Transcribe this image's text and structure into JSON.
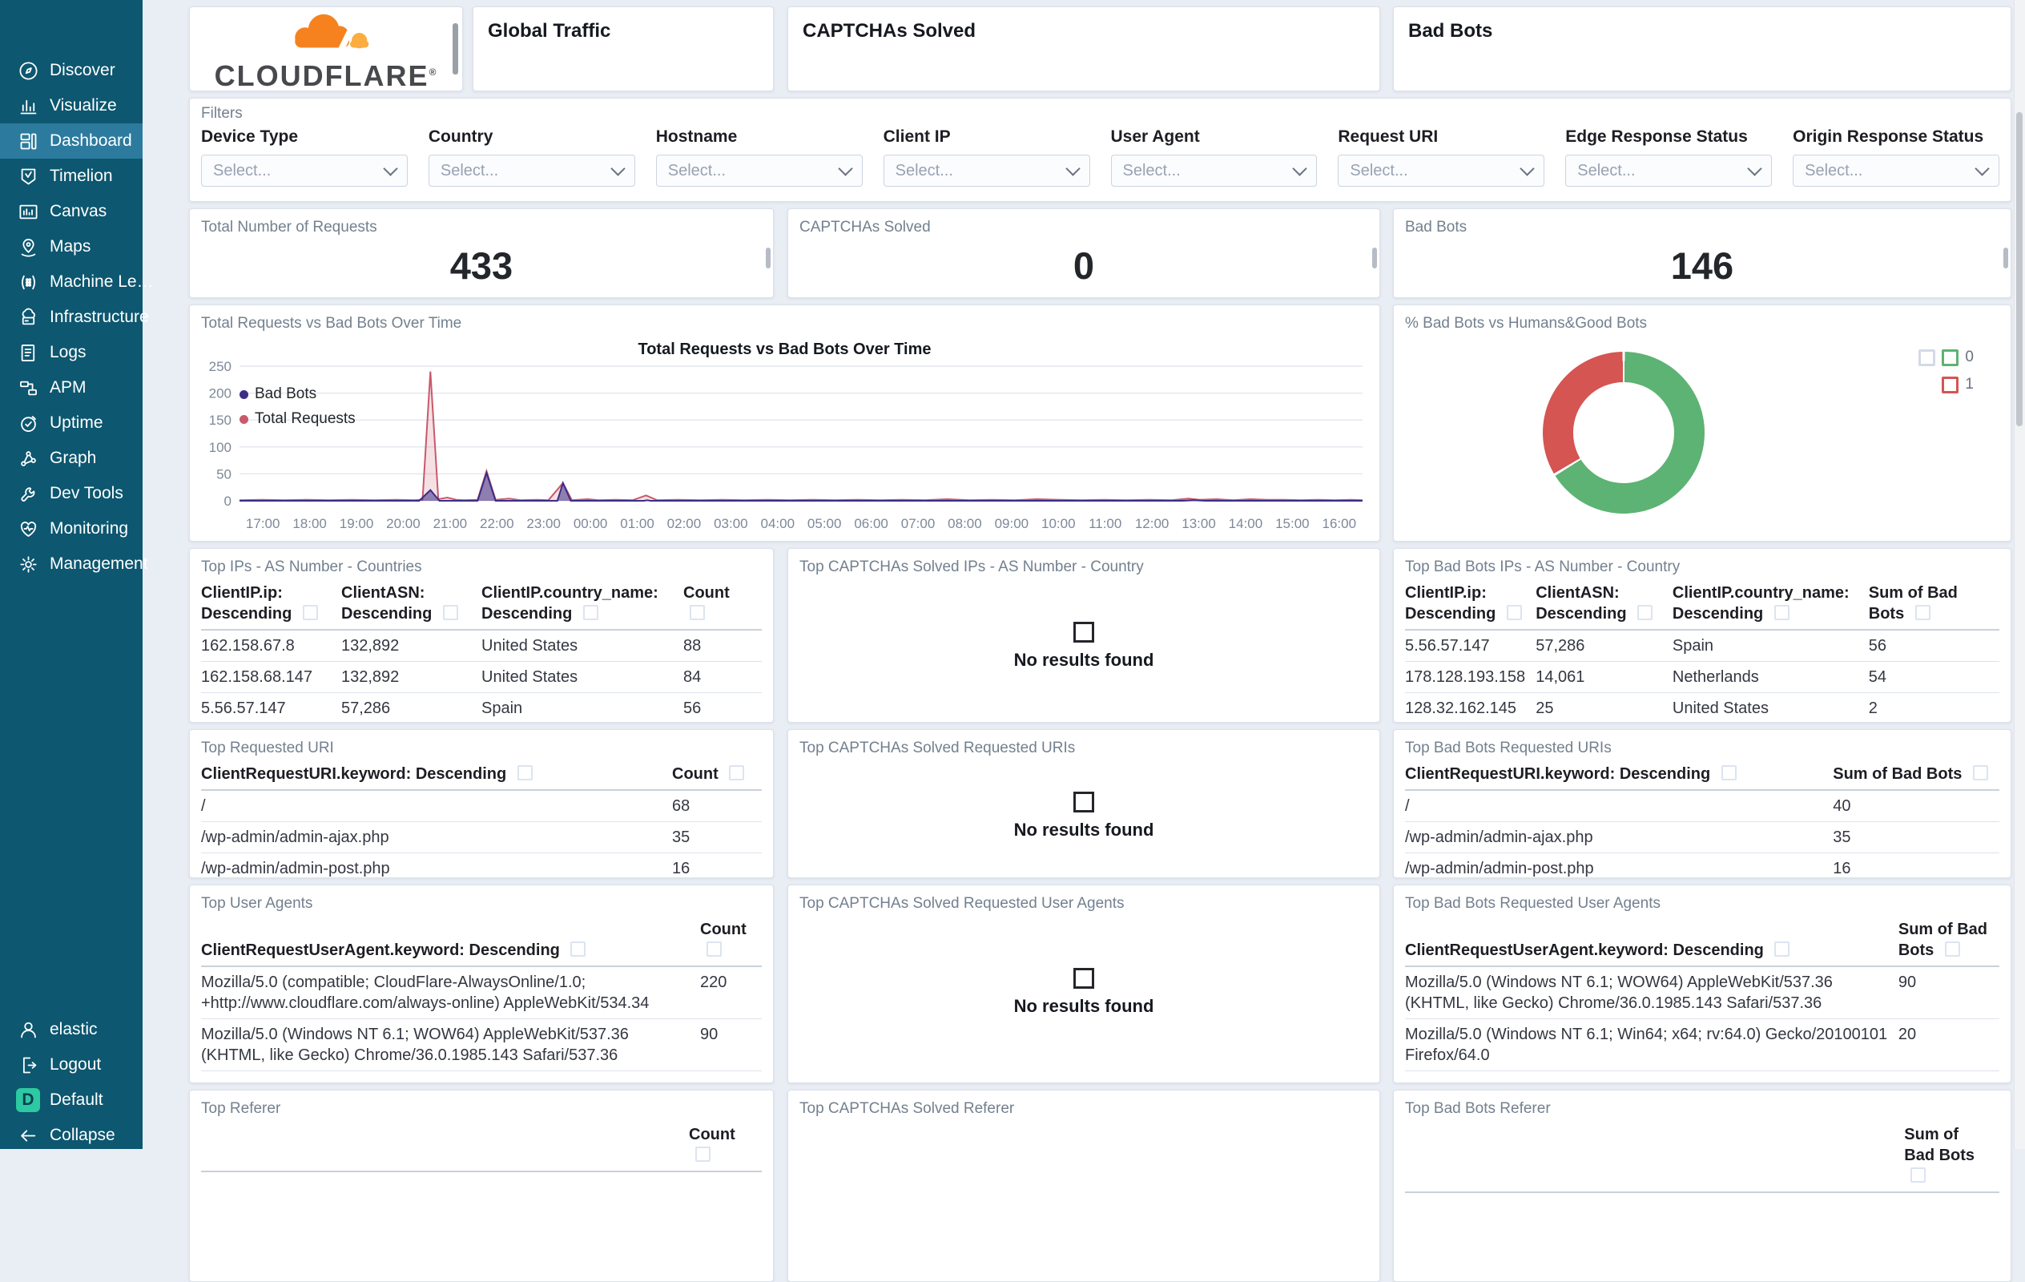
{
  "sidebar": {
    "items": [
      {
        "label": "Discover",
        "icon": "discover-icon",
        "active": false
      },
      {
        "label": "Visualize",
        "icon": "visualize-icon",
        "active": false
      },
      {
        "label": "Dashboard",
        "icon": "dashboard-icon",
        "active": true
      },
      {
        "label": "Timelion",
        "icon": "timelion-icon",
        "active": false
      },
      {
        "label": "Canvas",
        "icon": "canvas-icon",
        "active": false
      },
      {
        "label": "Maps",
        "icon": "maps-icon",
        "active": false
      },
      {
        "label": "Machine Le…",
        "icon": "machine-learning-icon",
        "active": false
      },
      {
        "label": "Infrastructure",
        "icon": "infrastructure-icon",
        "active": false
      },
      {
        "label": "Logs",
        "icon": "logs-icon",
        "active": false
      },
      {
        "label": "APM",
        "icon": "apm-icon",
        "active": false
      },
      {
        "label": "Uptime",
        "icon": "uptime-icon",
        "active": false
      },
      {
        "label": "Graph",
        "icon": "graph-icon",
        "active": false
      },
      {
        "label": "Dev Tools",
        "icon": "dev-tools-icon",
        "active": false
      },
      {
        "label": "Monitoring",
        "icon": "monitoring-icon",
        "active": false
      },
      {
        "label": "Management",
        "icon": "management-icon",
        "active": false
      }
    ],
    "footer": [
      {
        "label": "elastic",
        "icon": "user-icon"
      },
      {
        "label": "Logout",
        "icon": "logout-icon"
      },
      {
        "label": "Default",
        "icon": "default-space-badge",
        "badge": "D"
      },
      {
        "label": "Collapse",
        "icon": "collapse-icon"
      }
    ]
  },
  "header": {
    "logo_text": "CLOUDFLARE",
    "panels": [
      "Global Traffic",
      "CAPTCHAs Solved",
      "Bad Bots"
    ]
  },
  "filters": {
    "title": "Filters",
    "placeholder": "Select...",
    "fields": [
      "Device Type",
      "Country",
      "Hostname",
      "Client IP",
      "User Agent",
      "Request URI",
      "Edge Response Status",
      "Origin Response Status"
    ]
  },
  "metrics": [
    {
      "title": "Total Number of Requests",
      "value": "433"
    },
    {
      "title": "CAPTCHAs Solved",
      "value": "0"
    },
    {
      "title": "Bad Bots",
      "value": "146"
    }
  ],
  "chart_data": [
    {
      "type": "area",
      "title": "Total Requests vs Bad Bots Over Time",
      "x_labels": [
        "17:00",
        "18:00",
        "19:00",
        "20:00",
        "21:00",
        "22:00",
        "23:00",
        "00:00",
        "01:00",
        "02:00",
        "03:00",
        "04:00",
        "05:00",
        "06:00",
        "07:00",
        "08:00",
        "09:00",
        "10:00",
        "11:00",
        "12:00",
        "13:00",
        "14:00",
        "15:00",
        "16:00"
      ],
      "ylim": [
        0,
        250
      ],
      "y_ticks": [
        0,
        50,
        100,
        150,
        200,
        250
      ],
      "grid": true,
      "legend_position": "inside-left",
      "series": [
        {
          "name": "Bad Bots",
          "color": "#3b2e87",
          "fill": "rgba(59,46,135,0.55)",
          "points": [
            [
              0,
              0
            ],
            [
              0.16,
              0
            ],
            [
              0.17,
              20
            ],
            [
              0.178,
              0
            ],
            [
              0.212,
              0
            ],
            [
              0.22,
              52
            ],
            [
              0.228,
              0
            ],
            [
              0.283,
              0
            ],
            [
              0.288,
              33
            ],
            [
              0.295,
              0
            ],
            [
              0.36,
              0
            ],
            [
              0.363,
              1
            ],
            [
              0.366,
              0
            ],
            [
              0.84,
              0
            ],
            [
              0.85,
              1
            ],
            [
              0.86,
              0
            ],
            [
              1,
              0
            ]
          ]
        },
        {
          "name": "Total Requests",
          "color": "#c9596b",
          "fill": "rgba(201,89,107,0.18)",
          "points": [
            [
              0,
              1
            ],
            [
              0.02,
              2
            ],
            [
              0.04,
              1
            ],
            [
              0.06,
              2
            ],
            [
              0.08,
              1
            ],
            [
              0.1,
              2
            ],
            [
              0.12,
              1
            ],
            [
              0.14,
              2
            ],
            [
              0.155,
              1
            ],
            [
              0.163,
              2
            ],
            [
              0.17,
              240
            ],
            [
              0.177,
              3
            ],
            [
              0.185,
              6
            ],
            [
              0.193,
              2
            ],
            [
              0.2,
              1
            ],
            [
              0.212,
              2
            ],
            [
              0.22,
              55
            ],
            [
              0.228,
              2
            ],
            [
              0.24,
              4
            ],
            [
              0.25,
              1
            ],
            [
              0.265,
              2
            ],
            [
              0.275,
              1
            ],
            [
              0.288,
              33
            ],
            [
              0.296,
              1
            ],
            [
              0.31,
              3
            ],
            [
              0.32,
              1
            ],
            [
              0.335,
              2
            ],
            [
              0.35,
              1
            ],
            [
              0.362,
              10
            ],
            [
              0.372,
              1
            ],
            [
              0.39,
              2
            ],
            [
              0.41,
              1
            ],
            [
              0.43,
              2
            ],
            [
              0.45,
              1
            ],
            [
              0.47,
              2
            ],
            [
              0.49,
              1
            ],
            [
              0.51,
              2
            ],
            [
              0.53,
              1
            ],
            [
              0.55,
              2
            ],
            [
              0.57,
              1
            ],
            [
              0.59,
              2
            ],
            [
              0.61,
              1
            ],
            [
              0.63,
              3
            ],
            [
              0.65,
              1
            ],
            [
              0.67,
              2
            ],
            [
              0.69,
              1
            ],
            [
              0.71,
              3
            ],
            [
              0.73,
              2
            ],
            [
              0.75,
              1
            ],
            [
              0.77,
              2
            ],
            [
              0.79,
              1
            ],
            [
              0.81,
              2
            ],
            [
              0.83,
              1
            ],
            [
              0.845,
              4
            ],
            [
              0.855,
              2
            ],
            [
              0.87,
              3
            ],
            [
              0.885,
              1
            ],
            [
              0.9,
              3
            ],
            [
              0.915,
              2
            ],
            [
              0.93,
              2
            ],
            [
              0.945,
              1
            ],
            [
              0.96,
              2
            ],
            [
              0.975,
              1
            ],
            [
              0.99,
              2
            ],
            [
              1,
              1
            ]
          ]
        }
      ]
    },
    {
      "type": "pie",
      "donut": true,
      "title": "% Bad Bots vs Humans&Good Bots",
      "labels": [
        "0",
        "1"
      ],
      "values": [
        287,
        146
      ],
      "colors": [
        "#5cb373",
        "#d45552"
      ],
      "legend_position": "top-right"
    }
  ],
  "tables": {
    "top_ips": {
      "title": "Top IPs - AS Number - Countries",
      "columns": [
        "ClientIP.ip: Descending",
        "ClientASN: Descending",
        "ClientIP.country_name: Descending",
        "Count"
      ],
      "rows": [
        [
          "162.158.67.8",
          "132,892",
          "United States",
          "88"
        ],
        [
          "162.158.68.147",
          "132,892",
          "United States",
          "84"
        ],
        [
          "5.56.57.147",
          "57,286",
          "Spain",
          "56"
        ]
      ]
    },
    "top_captcha_ips": {
      "title": "Top CAPTCHAs Solved IPs - AS Number - Country"
    },
    "top_badbot_ips": {
      "title": "Top Bad Bots IPs - AS Number - Country",
      "columns": [
        "ClientIP.ip: Descending",
        "ClientASN: Descending",
        "ClientIP.country_name: Descending",
        "Sum of Bad Bots"
      ],
      "rows": [
        [
          "5.56.57.147",
          "57,286",
          "Spain",
          "56"
        ],
        [
          "178.128.193.158",
          "14,061",
          "Netherlands",
          "54"
        ],
        [
          "128.32.162.145",
          "25",
          "United States",
          "2"
        ]
      ]
    },
    "top_uri": {
      "title": "Top Requested URI",
      "columns": [
        "ClientRequestURI.keyword: Descending",
        "Count"
      ],
      "rows": [
        [
          "/",
          "68"
        ],
        [
          "/wp-admin/admin-ajax.php",
          "35"
        ],
        [
          "/wp-admin/admin-post.php",
          "16"
        ]
      ]
    },
    "top_captcha_uri": {
      "title": "Top CAPTCHAs Solved Requested URIs"
    },
    "top_badbot_uri": {
      "title": "Top Bad Bots Requested URIs",
      "columns": [
        "ClientRequestURI.keyword: Descending",
        "Sum of Bad Bots"
      ],
      "rows": [
        [
          "/",
          "40"
        ],
        [
          "/wp-admin/admin-ajax.php",
          "35"
        ],
        [
          "/wp-admin/admin-post.php",
          "16"
        ]
      ]
    },
    "top_ua": {
      "title": "Top User Agents",
      "columns": [
        "ClientRequestUserAgent.keyword: Descending",
        "Count"
      ],
      "rows": [
        [
          "Mozilla/5.0 (compatible; CloudFlare-AlwaysOnline/1.0; +http://www.cloudflare.com/always-online) AppleWebKit/534.34",
          "220"
        ],
        [
          "Mozilla/5.0 (Windows NT 6.1; WOW64) AppleWebKit/537.36 (KHTML, like Gecko) Chrome/36.0.1985.143 Safari/537.36",
          "90"
        ]
      ]
    },
    "top_captcha_ua": {
      "title": "Top CAPTCHAs Solved Requested User Agents"
    },
    "top_badbot_ua": {
      "title": "Top Bad Bots Requested User Agents",
      "columns": [
        "ClientRequestUserAgent.keyword: Descending",
        "Sum of Bad Bots"
      ],
      "rows": [
        [
          "Mozilla/5.0 (Windows NT 6.1; WOW64) AppleWebKit/537.36 (KHTML, like Gecko) Chrome/36.0.1985.143 Safari/537.36",
          "90"
        ],
        [
          "Mozilla/5.0 (Windows NT 6.1; Win64; x64; rv:64.0) Gecko/20100101 Firefox/64.0",
          "20"
        ]
      ]
    },
    "top_referer": {
      "title": "Top Referer",
      "columns": [
        "",
        "Count"
      ],
      "rows": []
    },
    "top_captcha_referer": {
      "title": "Top CAPTCHAs Solved Referer"
    },
    "top_badbot_referer": {
      "title": "Top Bad Bots Referer",
      "columns": [
        "",
        "Sum of Bad Bots"
      ],
      "rows": []
    }
  },
  "empty_state": {
    "text": "No results found"
  },
  "colors": {
    "sidebar_bg": "#0d5770",
    "sidebar_selected": "#2c7b9e",
    "bad_bots_series": "#3b2e87",
    "total_requests_series": "#c9596b",
    "pie_green": "#5cb373",
    "pie_red": "#d45552",
    "cloudflare_orange": "#f6821f",
    "cloudflare_light_orange": "#fbad41",
    "default_space_badge": "#2dc9a2"
  }
}
